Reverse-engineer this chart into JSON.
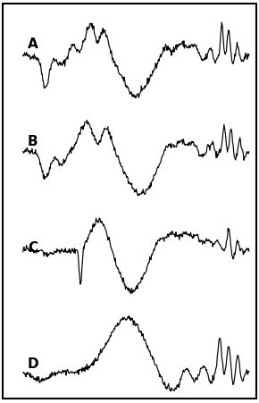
{
  "figsize": [
    2.9,
    4.52
  ],
  "dpi": 100,
  "bg_color": "#ffffff",
  "border_color": "#000000",
  "line_color": "#000000",
  "line_width": 0.85,
  "labels": [
    "A",
    "B",
    "C",
    "D"
  ],
  "label_fontsize": 11,
  "label_fontweight": "bold"
}
